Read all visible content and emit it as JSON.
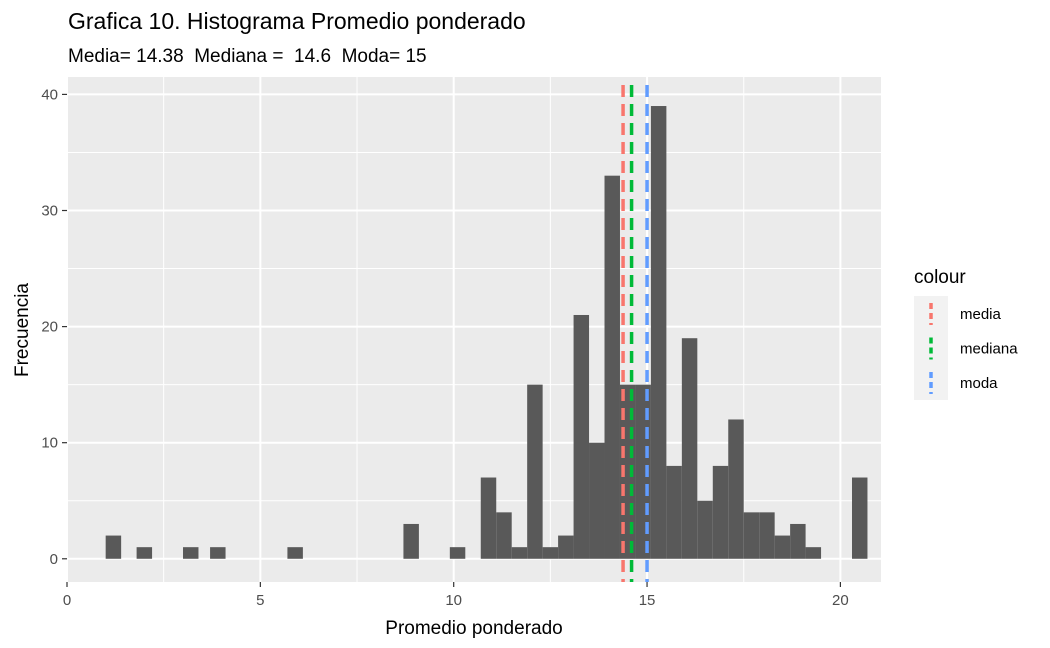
{
  "chart_data": {
    "type": "bar",
    "title": "Grafica 10. Histograma Promedio ponderado",
    "subtitle": "Media= 14.38  Mediana =  14.6  Moda= 15",
    "xlabel": "Promedio ponderado",
    "ylabel": "Frecuencia",
    "xlim": [
      0,
      21.05
    ],
    "ylim": [
      -2,
      41.5
    ],
    "xticks": [
      0,
      5,
      10,
      15,
      20
    ],
    "yticks": [
      0,
      10,
      20,
      30,
      40
    ],
    "grid": true,
    "bar_color": "#595959",
    "bins": [
      {
        "x": 1.2,
        "count": 2
      },
      {
        "x": 2.0,
        "count": 1
      },
      {
        "x": 3.2,
        "count": 1
      },
      {
        "x": 3.9,
        "count": 1
      },
      {
        "x": 5.9,
        "count": 1
      },
      {
        "x": 8.9,
        "count": 3
      },
      {
        "x": 10.1,
        "count": 1
      },
      {
        "x": 10.9,
        "count": 7
      },
      {
        "x": 11.3,
        "count": 4
      },
      {
        "x": 11.7,
        "count": 1
      },
      {
        "x": 12.1,
        "count": 15
      },
      {
        "x": 12.5,
        "count": 1
      },
      {
        "x": 12.9,
        "count": 2
      },
      {
        "x": 13.3,
        "count": 21
      },
      {
        "x": 13.7,
        "count": 10
      },
      {
        "x": 14.1,
        "count": 33
      },
      {
        "x": 14.5,
        "count": 15
      },
      {
        "x": 14.9,
        "count": 15
      },
      {
        "x": 15.3,
        "count": 39
      },
      {
        "x": 15.7,
        "count": 8
      },
      {
        "x": 16.1,
        "count": 19
      },
      {
        "x": 16.5,
        "count": 5
      },
      {
        "x": 16.9,
        "count": 8
      },
      {
        "x": 17.3,
        "count": 12
      },
      {
        "x": 17.7,
        "count": 4
      },
      {
        "x": 18.1,
        "count": 4
      },
      {
        "x": 18.5,
        "count": 2
      },
      {
        "x": 18.9,
        "count": 3
      },
      {
        "x": 19.3,
        "count": 1
      },
      {
        "x": 20.5,
        "count": 7
      }
    ],
    "bin_width": 0.4,
    "reference_lines": [
      {
        "name": "media",
        "x": 14.38,
        "color": "#F8766D"
      },
      {
        "name": "mediana",
        "x": 14.6,
        "color": "#00BA38"
      },
      {
        "name": "moda",
        "x": 15,
        "color": "#619CFF"
      }
    ],
    "legend": {
      "title": "colour",
      "position": "right"
    }
  }
}
